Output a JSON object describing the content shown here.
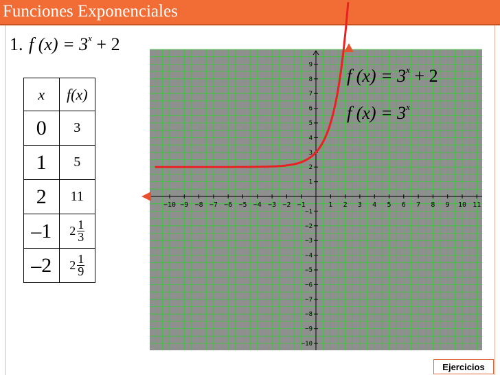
{
  "slide": {
    "title": "Funciones Exponenciales"
  },
  "exercise": {
    "number": "1.",
    "equation_main": "f (x) = 3",
    "exponent": "x",
    "suffix": " + 2"
  },
  "table": {
    "headers": [
      "x",
      "f(x)"
    ],
    "rows": [
      {
        "x": "0",
        "fx_whole": "3",
        "fx_num": "",
        "fx_den": ""
      },
      {
        "x": "1",
        "fx_whole": "5",
        "fx_num": "",
        "fx_den": ""
      },
      {
        "x": "2",
        "fx_whole": "11",
        "fx_num": "",
        "fx_den": ""
      },
      {
        "x": "–1",
        "fx_whole": "2",
        "fx_num": "1",
        "fx_den": "3"
      },
      {
        "x": "–2",
        "fx_whole": "2",
        "fx_num": "1",
        "fx_den": "9"
      }
    ]
  },
  "chart_data": {
    "type": "line",
    "xlim": [
      -11,
      11
    ],
    "ylim": [
      -10,
      10
    ],
    "x_ticks": [
      -10,
      -9,
      -8,
      -7,
      -6,
      -5,
      -4,
      -3,
      -2,
      -1,
      1,
      2,
      3,
      4,
      5,
      6,
      7,
      8,
      9,
      10,
      11
    ],
    "y_ticks": [
      -10,
      -9,
      -8,
      -7,
      -6,
      -5,
      -4,
      -3,
      -2,
      -1,
      1,
      2,
      3,
      4,
      5,
      6,
      7,
      8,
      9
    ],
    "grid": true,
    "grid_color": "#33cc33",
    "background_color": "#8f8f8f",
    "curve_color": "#e82222",
    "series": [
      {
        "function": "3^x + 2",
        "x_min": -11,
        "x_max": 2.2
      }
    ],
    "labels": [
      {
        "lhs": "f (x) = 3",
        "exp": "x",
        "rhs": " + 2"
      },
      {
        "lhs": "f (x) = 3",
        "exp": "x",
        "rhs": ""
      }
    ]
  },
  "footer": {
    "button_label": "Ejercicios"
  }
}
